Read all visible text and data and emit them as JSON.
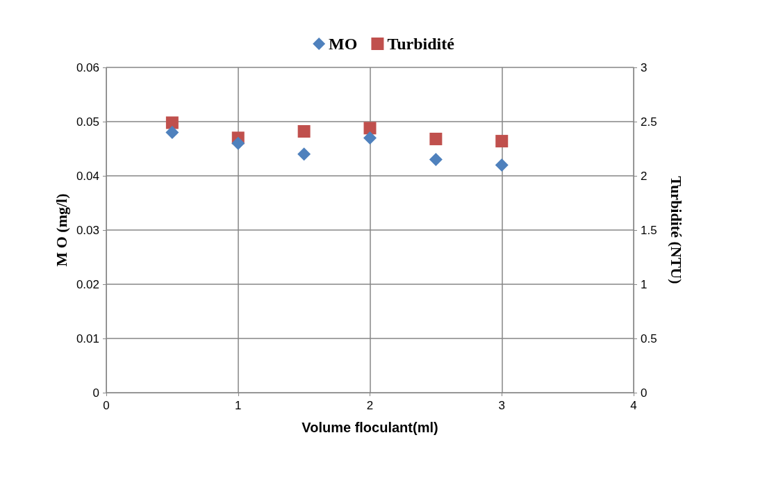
{
  "chart_data": {
    "type": "scatter",
    "xlabel": "Volume floculant(ml)",
    "ylabel": "M O (mg/l)",
    "y2label": "Turbidité (NTU)",
    "x": [
      0.5,
      1,
      1.5,
      2,
      2.5,
      3
    ],
    "series": [
      {
        "name": "MO",
        "color": "#4f81bd",
        "marker": "diamond",
        "values": [
          0.048,
          0.046,
          0.044,
          0.047,
          0.043,
          0.042
        ]
      },
      {
        "name": "Turbidité",
        "color": "#c0504d",
        "marker": "square",
        "axis": "y2",
        "values": [
          2.49,
          2.35,
          2.41,
          2.44,
          2.34,
          2.32
        ]
      }
    ],
    "xlim": [
      0,
      4
    ],
    "xticks": [
      0,
      1,
      2,
      3,
      4
    ],
    "ylim": [
      0,
      0.06
    ],
    "yticks": [
      0,
      0.01,
      0.02,
      0.03,
      0.04,
      0.05,
      0.06
    ],
    "y2lim": [
      0,
      3
    ],
    "y2ticks": [
      0,
      0.5,
      1,
      1.5,
      2,
      2.5,
      3
    ],
    "grid": true,
    "legend": "top"
  }
}
